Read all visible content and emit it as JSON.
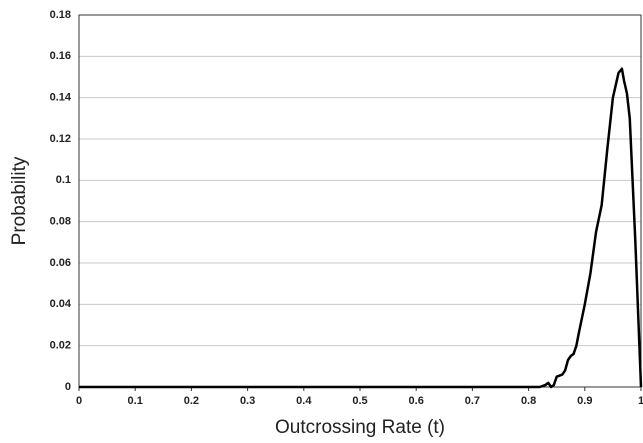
{
  "chart_data": {
    "type": "line",
    "x_label": "Outcrossing Rate (t)",
    "y_label": "Probability",
    "x": [
      0,
      0.82,
      0.83,
      0.835,
      0.84,
      0.845,
      0.85,
      0.86,
      0.865,
      0.87,
      0.875,
      0.88,
      0.885,
      0.89,
      0.9,
      0.91,
      0.92,
      0.93,
      0.94,
      0.95,
      0.96,
      0.966,
      0.97,
      0.975,
      0.98,
      0.99,
      1.0
    ],
    "values": [
      0,
      0,
      0.001,
      0.002,
      0,
      0.001,
      0.005,
      0.006,
      0.008,
      0.013,
      0.015,
      0.016,
      0.02,
      0.027,
      0.04,
      0.055,
      0.075,
      0.088,
      0.115,
      0.14,
      0.152,
      0.154,
      0.148,
      0.142,
      0.13,
      0.07,
      0
    ],
    "color": "#000000",
    "xlim": [
      0,
      1
    ],
    "xticks": [
      0,
      0.1,
      0.2,
      0.3,
      0.4,
      0.5,
      0.6,
      0.7,
      0.8,
      0.9,
      1
    ],
    "ylim": [
      0,
      0.18
    ],
    "yticks": [
      0,
      0.02,
      0.04,
      0.06,
      0.08,
      0.1,
      0.12,
      0.14,
      0.16,
      0.18
    ],
    "grid": true
  }
}
